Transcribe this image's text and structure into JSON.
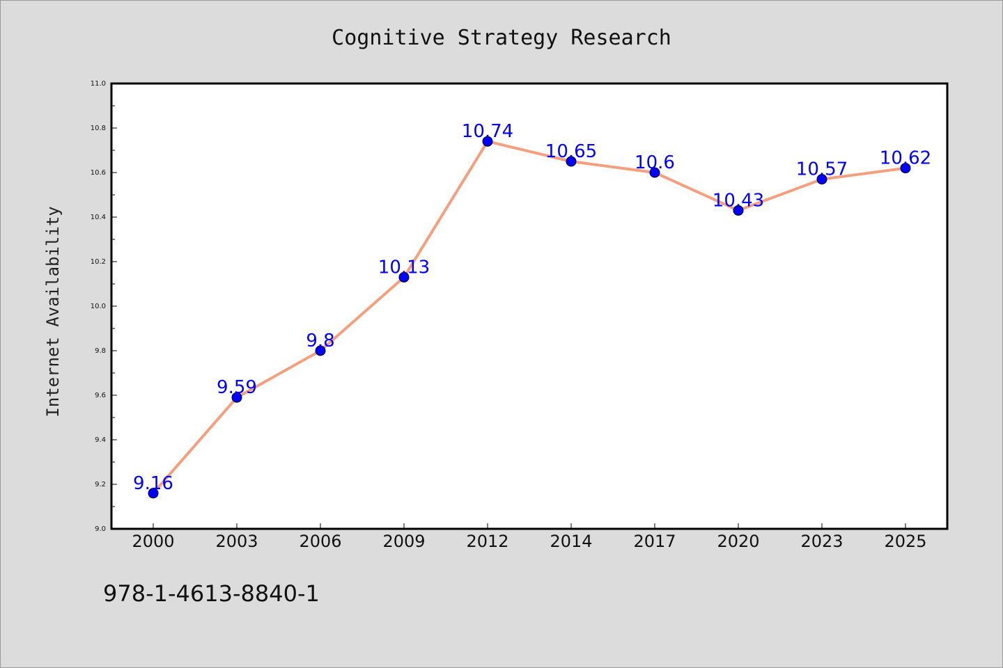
{
  "chart_data": {
    "type": "line",
    "title": "Cognitive Strategy Research",
    "xlabel": "",
    "ylabel": "Internet Availability",
    "categories": [
      "2000",
      "2003",
      "2006",
      "2009",
      "2012",
      "2014",
      "2017",
      "2020",
      "2023",
      "2025"
    ],
    "series": [
      {
        "values": [
          9.16,
          9.59,
          9.8,
          10.13,
          10.74,
          10.65,
          10.6,
          10.43,
          10.57,
          10.62
        ],
        "line_color": "#f4a07e",
        "marker_color": "#0000ff"
      }
    ],
    "data_labels": [
      "9.16",
      "9.59",
      "9.8",
      "10.13",
      "10.74",
      "10.65",
      "10.6",
      "10.43",
      "10.57",
      "10.62"
    ],
    "ylim": [
      9.0,
      11.0
    ],
    "yticks": [
      9.0,
      9.2,
      9.4,
      9.6,
      9.8,
      10.0,
      10.2,
      10.4,
      10.6,
      10.8,
      11.0
    ],
    "ytick_labels": [
      "9.0",
      "9.2",
      "9.4",
      "9.6",
      "9.8",
      "10.0",
      "10.2",
      "10.4",
      "10.6",
      "10.8",
      "11.0"
    ],
    "grid": false,
    "legend": "none",
    "data_label_color": "#0000ff"
  },
  "footnote": "978-1-4613-8840-1",
  "colors": {
    "background": "#dcdcdc",
    "plot_area": "#ffffff",
    "line": "#f4a07e",
    "marker": "#0000ff",
    "labels": "#0000ff"
  }
}
